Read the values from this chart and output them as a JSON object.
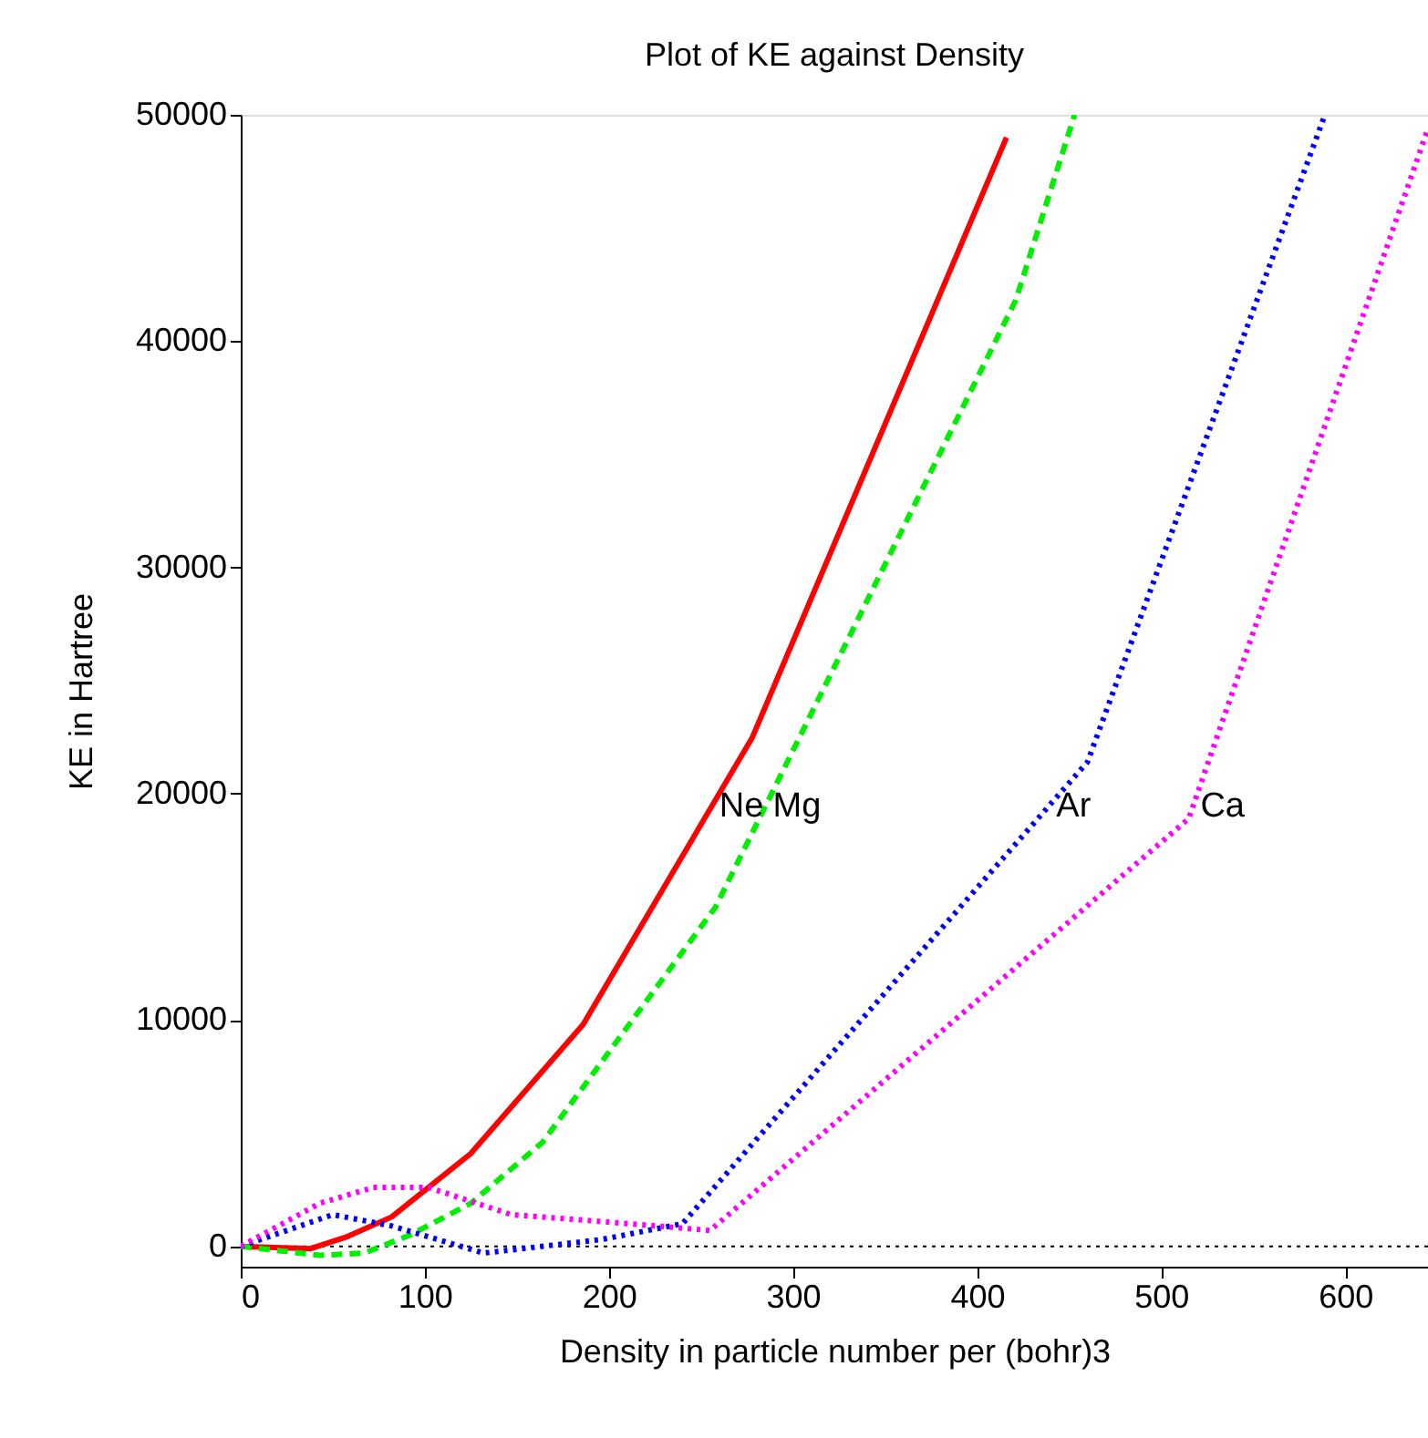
{
  "chart_data": {
    "type": "line",
    "title": "Plot of KE against Density",
    "xlabel": "Density in particle number per (bohr)3",
    "ylabel": "KE in Hartree",
    "xlim": [
      0,
      645
    ],
    "ylim": [
      -900,
      50000
    ],
    "xticks": [
      0,
      100,
      200,
      300,
      400,
      500,
      600
    ],
    "yticks": [
      0,
      10000,
      20000,
      30000,
      40000,
      50000
    ],
    "grid": false,
    "marker": "none",
    "series": [
      {
        "name": "Ne",
        "color": "#ff0000",
        "line_style": "solid",
        "x": [
          0,
          38,
          57,
          82,
          125,
          186,
          278,
          416
        ],
        "values": [
          0,
          -100,
          400,
          1300,
          4100,
          9800,
          22500,
          49000
        ]
      },
      {
        "name": "Mg",
        "color": "#00ee00",
        "line_style": "dashed",
        "x": [
          0,
          43,
          67,
          92,
          125,
          164,
          258,
          421,
          453
        ],
        "values": [
          0,
          -400,
          -300,
          500,
          1900,
          4600,
          15000,
          41800,
          50000
        ]
      },
      {
        "name": "Ar",
        "color": "#0000ff",
        "line_style": "dotted",
        "x": [
          0,
          50,
          82,
          132,
          196,
          240,
          460,
          589
        ],
        "values": [
          0,
          1400,
          900,
          -300,
          300,
          1000,
          21400,
          50000
        ]
      },
      {
        "name": "Ca",
        "color": "#ff00ff",
        "line_style": "dotted",
        "x": [
          0,
          43,
          72,
          102,
          147,
          211,
          255,
          515,
          645
        ],
        "values": [
          0,
          1900,
          2600,
          2600,
          1400,
          1000,
          700,
          18900,
          49400
        ]
      }
    ],
    "ref_lines": [
      {
        "axis": "y",
        "value": 0,
        "color": "#000000",
        "line_style": "dotted"
      }
    ]
  }
}
